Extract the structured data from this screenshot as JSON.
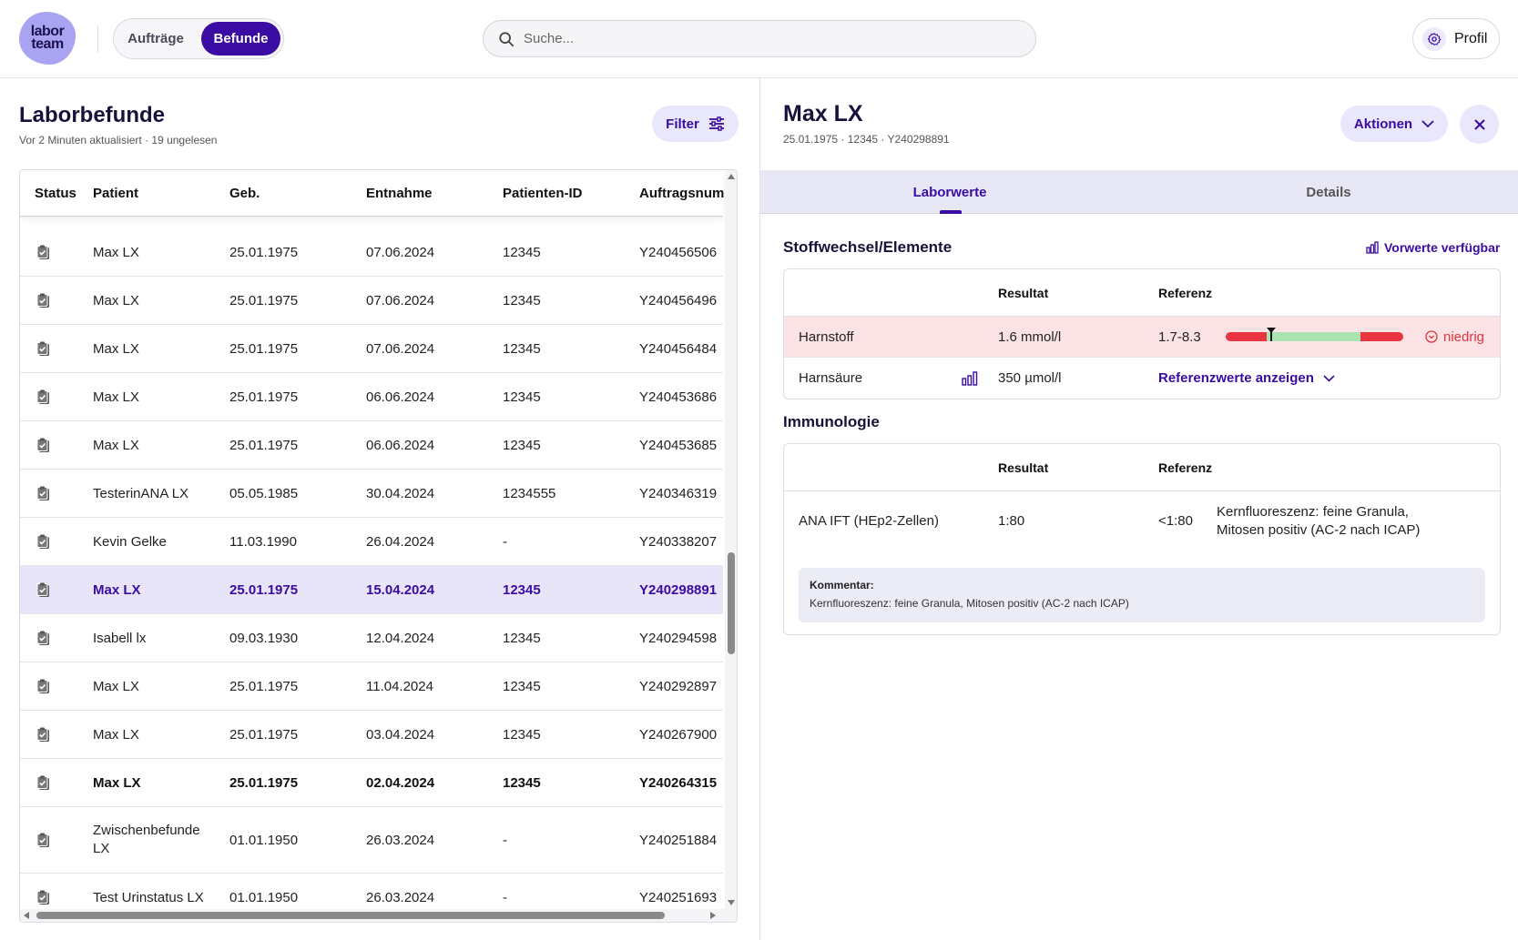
{
  "header": {
    "logo_line1": "labor",
    "logo_line2": "team",
    "nav": {
      "auftraege": "Aufträge",
      "befunde": "Befunde"
    },
    "search_placeholder": "Suche...",
    "profile_label": "Profil"
  },
  "list": {
    "title": "Laborbefunde",
    "subtitle": "Vor 2 Minuten aktualisiert · 19 ungelesen",
    "filter_label": "Filter",
    "columns": {
      "status": "Status",
      "patient": "Patient",
      "geb": "Geb.",
      "entnahme": "Entnahme",
      "patienten_id": "Patienten-ID",
      "auftragsnummer": "Auftragsnumm"
    },
    "rows": [
      {
        "patient": "Max LX",
        "geb": "25.01.1975",
        "entnahme": "07.06.2024",
        "pid": "12345",
        "auftrag": "Y240456506"
      },
      {
        "patient": "Max LX",
        "geb": "25.01.1975",
        "entnahme": "07.06.2024",
        "pid": "12345",
        "auftrag": "Y240456496"
      },
      {
        "patient": "Max LX",
        "geb": "25.01.1975",
        "entnahme": "07.06.2024",
        "pid": "12345",
        "auftrag": "Y240456484"
      },
      {
        "patient": "Max LX",
        "geb": "25.01.1975",
        "entnahme": "06.06.2024",
        "pid": "12345",
        "auftrag": "Y240453686"
      },
      {
        "patient": "Max LX",
        "geb": "25.01.1975",
        "entnahme": "06.06.2024",
        "pid": "12345",
        "auftrag": "Y240453685"
      },
      {
        "patient": "TesterinANA LX",
        "geb": "05.05.1985",
        "entnahme": "30.04.2024",
        "pid": "1234555",
        "auftrag": "Y240346319"
      },
      {
        "patient": "Kevin Gelke",
        "geb": "11.03.1990",
        "entnahme": "26.04.2024",
        "pid": "-",
        "auftrag": "Y240338207"
      },
      {
        "patient": "Max LX",
        "geb": "25.01.1975",
        "entnahme": "15.04.2024",
        "pid": "12345",
        "auftrag": "Y240298891"
      },
      {
        "patient": "Isabell lx",
        "geb": "09.03.1930",
        "entnahme": "12.04.2024",
        "pid": "12345",
        "auftrag": "Y240294598"
      },
      {
        "patient": "Max LX",
        "geb": "25.01.1975",
        "entnahme": "11.04.2024",
        "pid": "12345",
        "auftrag": "Y240292897"
      },
      {
        "patient": "Max LX",
        "geb": "25.01.1975",
        "entnahme": "03.04.2024",
        "pid": "12345",
        "auftrag": "Y240267900"
      },
      {
        "patient": "Max LX",
        "geb": "25.01.1975",
        "entnahme": "02.04.2024",
        "pid": "12345",
        "auftrag": "Y240264315"
      },
      {
        "patient": "Zwischenbefunde LX",
        "geb": "01.01.1950",
        "entnahme": "26.03.2024",
        "pid": "-",
        "auftrag": "Y240251884"
      },
      {
        "patient": "Test Urinstatus LX",
        "geb": "01.01.1950",
        "entnahme": "26.03.2024",
        "pid": "-",
        "auftrag": "Y240251693"
      }
    ]
  },
  "detail": {
    "name": "Max LX",
    "meta": "25.01.1975 · 12345 · Y240298891",
    "actions_label": "Aktionen",
    "tabs": {
      "laborwerte": "Laborwerte",
      "details": "Details"
    },
    "section1": {
      "title": "Stoffwechsel/Elemente",
      "vorwerte": "Vorwerte verfügbar",
      "col_resultat": "Resultat",
      "col_referenz": "Referenz",
      "row1": {
        "name": "Harnstoff",
        "result": "1.6 mmol/l",
        "ref": "1.7-8.3",
        "flag": "niedrig"
      },
      "row2": {
        "name": "Harnsäure",
        "result": "350 µmol/l",
        "ref_link": "Referenzwerte anzeigen"
      }
    },
    "section2": {
      "title": "Immunologie",
      "col_resultat": "Resultat",
      "col_referenz": "Referenz",
      "row1": {
        "name": "ANA IFT (HEp2-Zellen)",
        "result": "1:80",
        "ref": "<1:80",
        "desc": "Kernfluoreszenz: feine Granula, Mitosen positiv (AC-2 nach ICAP)"
      },
      "comment_label": "Kommentar:",
      "comment_text": "Kernfluoreszenz: feine Granula, Mitosen positiv (AC-2 nach ICAP)"
    }
  },
  "colors": {
    "accent": "#3a0ca3",
    "accent_soft": "#e9e7fb",
    "low": "#e0353f",
    "low_bg": "#fbe3e5",
    "normal": "#a9e3b0"
  }
}
